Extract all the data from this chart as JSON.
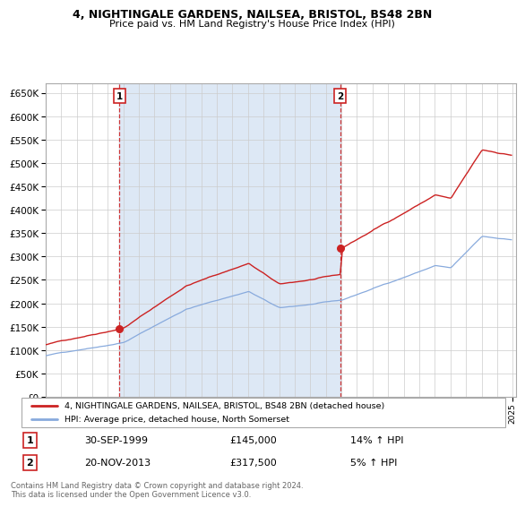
{
  "title_line1": "4, NIGHTINGALE GARDENS, NAILSEA, BRISTOL, BS48 2BN",
  "title_line2": "Price paid vs. HM Land Registry's House Price Index (HPI)",
  "legend_label1": "4, NIGHTINGALE GARDENS, NAILSEA, BRISTOL, BS48 2BN (detached house)",
  "legend_label2": "HPI: Average price, detached house, North Somerset",
  "color_price": "#cc2222",
  "color_hpi": "#88aadd",
  "color_bg_shade": "#dde8f5",
  "footer": "Contains HM Land Registry data © Crown copyright and database right 2024.\nThis data is licensed under the Open Government Licence v3.0.",
  "sale1_date": "30-SEP-1999",
  "sale1_price": "£145,000",
  "sale1_hpi": "14% ↑ HPI",
  "sale2_date": "20-NOV-2013",
  "sale2_price": "£317,500",
  "sale2_hpi": "5% ↑ HPI",
  "sale1_year": 1999.75,
  "sale2_year": 2013.917,
  "sale1_price_val": 145000,
  "sale2_price_val": 317500,
  "yticks": [
    0,
    50000,
    100000,
    150000,
    200000,
    250000,
    300000,
    350000,
    400000,
    450000,
    500000,
    550000,
    600000,
    650000
  ],
  "ylim_top": 670000,
  "xmin": 1995.0,
  "xmax": 2025.2
}
